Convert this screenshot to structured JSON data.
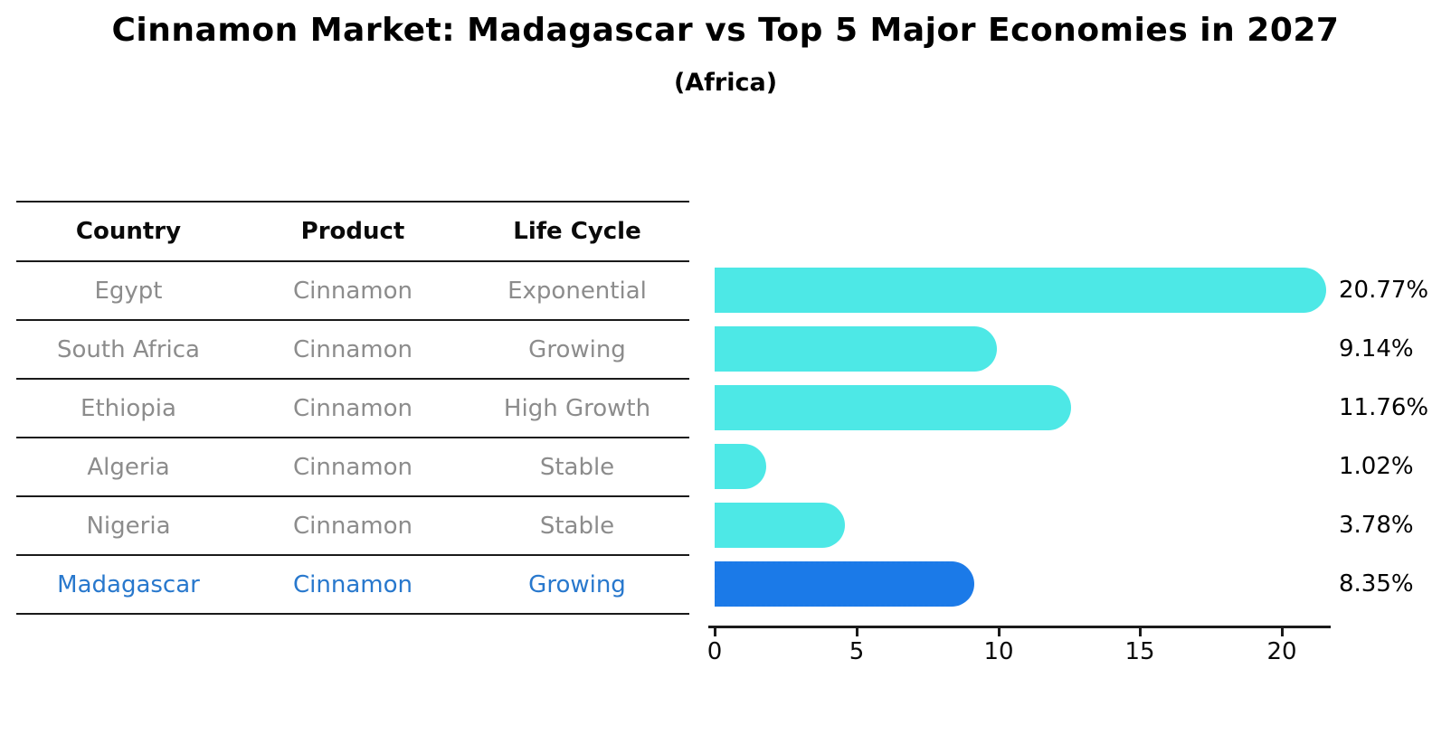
{
  "title": "Cinnamon Market: Madagascar vs Top 5 Major Economies in 2027",
  "subtitle": "(Africa)",
  "table": {
    "headers": [
      "Country",
      "Product",
      "Life Cycle"
    ],
    "rows": [
      {
        "country": "Egypt",
        "product": "Cinnamon",
        "life_cycle": "Exponential",
        "highlight": false
      },
      {
        "country": "South Africa",
        "product": "Cinnamon",
        "life_cycle": "Growing",
        "highlight": false
      },
      {
        "country": "Ethiopia",
        "product": "Cinnamon",
        "life_cycle": "High Growth",
        "highlight": false
      },
      {
        "country": "Algeria",
        "product": "Cinnamon",
        "life_cycle": "Stable",
        "highlight": false
      },
      {
        "country": "Nigeria",
        "product": "Cinnamon",
        "life_cycle": "Stable",
        "highlight": false
      },
      {
        "country": "Madagascar",
        "product": "Cinnamon",
        "life_cycle": "Growing",
        "highlight": true
      }
    ]
  },
  "chart_data": {
    "type": "bar",
    "orientation": "horizontal",
    "title": "Cinnamon Market: Madagascar vs Top 5 Major Economies in 2027",
    "subtitle": "(Africa)",
    "categories": [
      "Egypt",
      "South Africa",
      "Ethiopia",
      "Algeria",
      "Nigeria",
      "Madagascar"
    ],
    "values": [
      20.77,
      9.14,
      11.76,
      1.02,
      3.78,
      8.35
    ],
    "value_labels": [
      "20.77%",
      "9.14%",
      "11.76%",
      "1.02%",
      "3.78%",
      "8.35%"
    ],
    "unit": "%",
    "xticks": [
      0,
      5,
      10,
      15,
      20
    ],
    "xtick_labels": [
      "0",
      "5",
      "10",
      "15",
      "20"
    ],
    "xlim": [
      0,
      21.9
    ],
    "ylabel": "",
    "xlabel": "",
    "grid": false,
    "legend": false,
    "highlight_index": 5,
    "highlight_category": "Madagascar"
  },
  "colors": {
    "bar": "#4DE8E6",
    "highlight_bar": "#1B7AE8",
    "highlight_border": "#1E7BE8",
    "row_text": "#8C8C8C",
    "highlight_text": "#2878CD",
    "line": "#1A1A1A"
  }
}
